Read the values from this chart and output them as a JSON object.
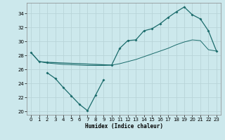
{
  "xlabel": "Humidex (Indice chaleur)",
  "background_color": "#cce8ec",
  "grid_color": "#c0d8dc",
  "line_color": "#1a6b6b",
  "xlim": [
    -0.5,
    23.5
  ],
  "ylim": [
    19.5,
    35.5
  ],
  "yticks": [
    20,
    22,
    24,
    26,
    28,
    30,
    32,
    34
  ],
  "xticks": [
    0,
    1,
    2,
    3,
    4,
    5,
    6,
    7,
    8,
    9,
    10,
    11,
    12,
    13,
    14,
    15,
    16,
    17,
    18,
    19,
    20,
    21,
    22,
    23
  ],
  "series1_x": [
    0,
    1,
    2,
    10,
    11,
    12,
    13,
    14,
    15,
    16,
    17,
    18,
    19,
    20,
    21,
    22,
    23
  ],
  "series1_y": [
    28.4,
    27.1,
    27.0,
    26.6,
    29.0,
    30.1,
    30.2,
    31.5,
    31.8,
    32.5,
    33.4,
    34.2,
    34.9,
    33.8,
    33.2,
    31.5,
    28.6
  ],
  "series2_x": [
    0,
    1,
    2,
    3,
    4,
    5,
    6,
    7,
    8,
    9,
    10,
    11,
    12,
    13,
    14,
    15,
    16,
    17,
    18,
    19,
    20,
    21,
    22,
    23
  ],
  "series2_y": [
    28.4,
    27.1,
    26.9,
    26.8,
    26.7,
    26.65,
    26.6,
    26.55,
    26.55,
    26.55,
    26.6,
    26.8,
    27.1,
    27.4,
    27.8,
    28.2,
    28.6,
    29.0,
    29.5,
    29.9,
    30.2,
    30.1,
    28.8,
    28.6
  ],
  "series3_x": [
    2,
    3,
    4,
    5,
    6,
    7,
    8,
    9
  ],
  "series3_y": [
    25.5,
    24.7,
    23.4,
    22.2,
    21.0,
    20.1,
    22.3,
    24.5
  ]
}
